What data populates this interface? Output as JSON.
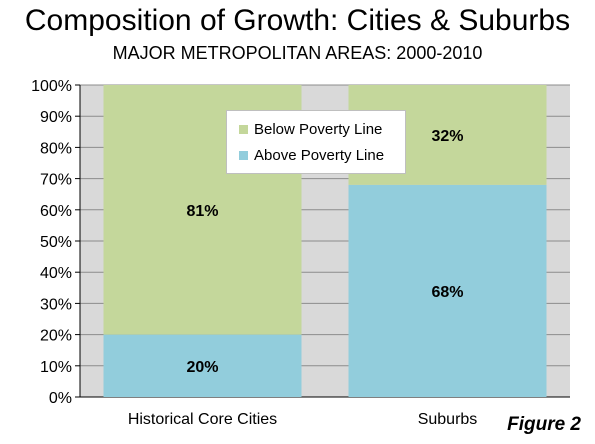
{
  "header": {
    "title": "Composition of Growth: Cities & Suburbs",
    "subtitle": "MAJOR METROPOLITAN AREAS: 2000-2010",
    "figure_label": "Figure 2"
  },
  "colors": {
    "below": "#c4d79b",
    "above": "#92cddc",
    "plot_bg": "#d9d9d9",
    "grid": "#8c8c8c"
  },
  "chart_data": {
    "type": "bar",
    "stacked": true,
    "categories": [
      "Historical Core Cities",
      "Suburbs"
    ],
    "series": [
      {
        "name": "Above Poverty Line",
        "values": [
          20,
          68
        ],
        "labels": [
          "20%",
          "68%"
        ]
      },
      {
        "name": "Below Poverty Line",
        "values": [
          81,
          32
        ],
        "labels": [
          "81%",
          "32%"
        ]
      }
    ],
    "ylim": [
      0,
      100
    ],
    "yticks": [
      0,
      10,
      20,
      30,
      40,
      50,
      60,
      70,
      80,
      90,
      100
    ],
    "ytick_labels": [
      "0%",
      "10%",
      "20%",
      "30%",
      "40%",
      "50%",
      "60%",
      "70%",
      "80%",
      "90%",
      "100%"
    ],
    "grid": true,
    "legend": {
      "placement": "top-center",
      "entries": [
        "Below Poverty Line",
        "Above Poverty Line"
      ]
    }
  }
}
